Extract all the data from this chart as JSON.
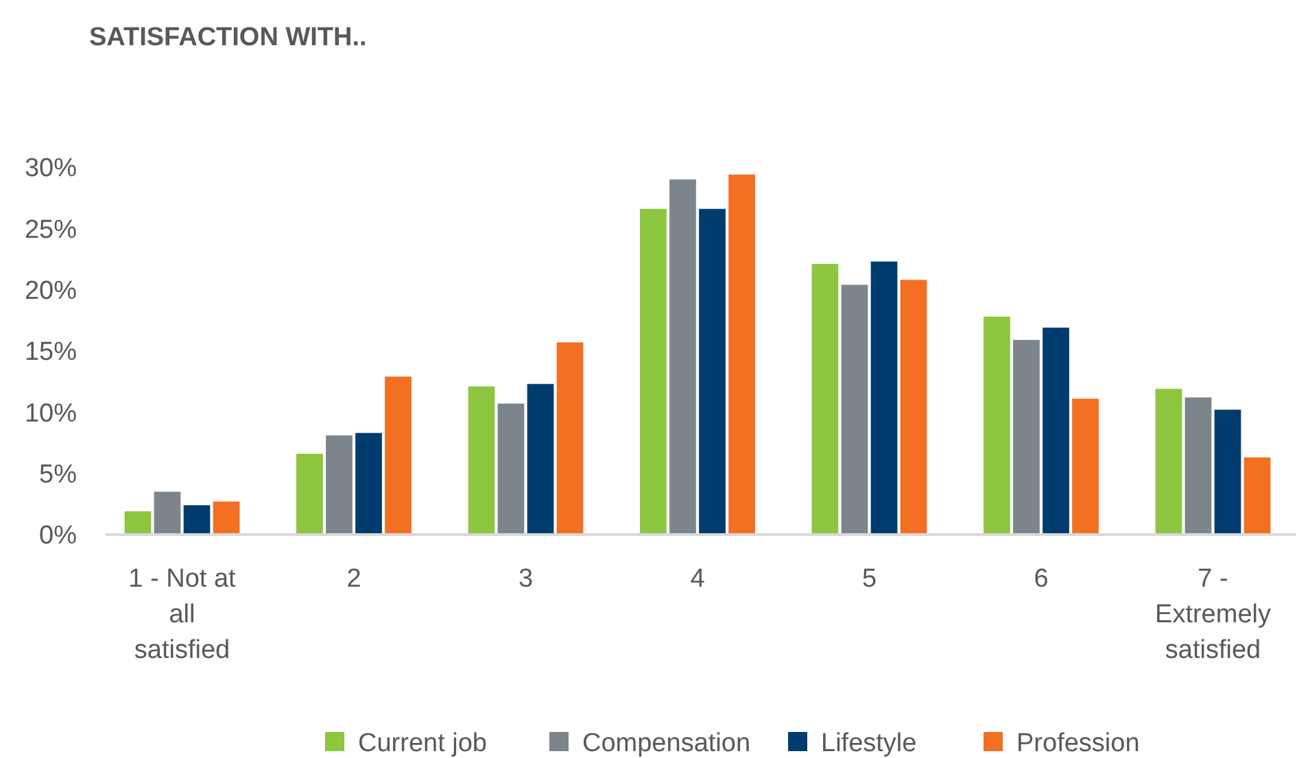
{
  "chart_data": {
    "type": "bar",
    "title": "SATISFACTION WITH..",
    "categories": [
      "1 - Not at all satisfied",
      "2",
      "3",
      "4",
      "5",
      "6",
      "7 - Extremely satisfied"
    ],
    "series": [
      {
        "name": "Current job",
        "color": "#8dc63f",
        "values": [
          1.9,
          6.6,
          12.1,
          26.6,
          22.1,
          17.8,
          11.9
        ]
      },
      {
        "name": "Compensation",
        "color": "#7b858b",
        "values": [
          3.5,
          8.1,
          10.7,
          29.0,
          20.4,
          15.9,
          11.2
        ]
      },
      {
        "name": "Lifestyle",
        "color": "#003d6e",
        "values": [
          2.4,
          8.3,
          12.3,
          26.6,
          22.3,
          16.9,
          10.2
        ]
      },
      {
        "name": "Profession",
        "color": "#f36f21",
        "values": [
          2.7,
          12.9,
          15.7,
          29.4,
          20.8,
          11.1,
          6.3
        ]
      }
    ],
    "ylim": [
      0,
      30
    ],
    "yticks": [
      {
        "value": 0,
        "label": "0%"
      },
      {
        "value": 5,
        "label": "5%"
      },
      {
        "value": 10,
        "label": "10%"
      },
      {
        "value": 15,
        "label": "15%"
      },
      {
        "value": 20,
        "label": "20%"
      },
      {
        "value": 25,
        "label": "25%"
      },
      {
        "value": 30,
        "label": "30%"
      }
    ],
    "grid": false,
    "legend": "bottom"
  }
}
